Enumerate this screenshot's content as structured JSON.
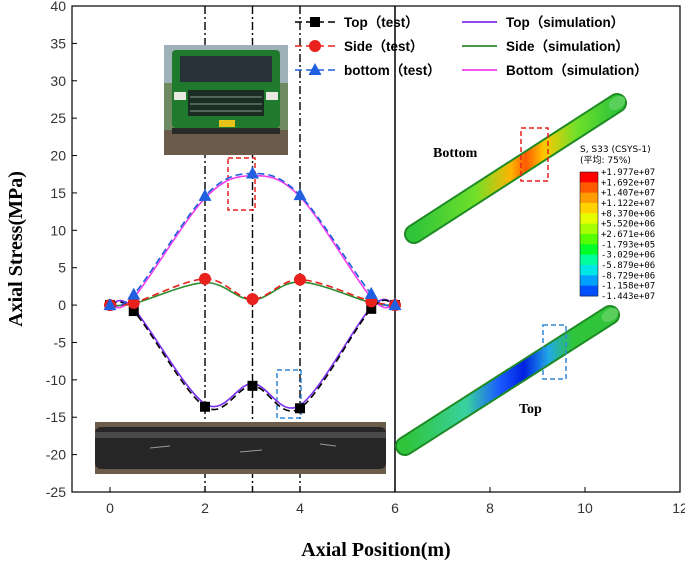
{
  "chart_data": {
    "type": "line",
    "xlabel": "Axial Position(m)",
    "ylabel": "Axial Stress(MPa)",
    "xlim": [
      -0.8,
      12
    ],
    "ylim": [
      -25,
      40
    ],
    "x_ticks": [
      0,
      2,
      4,
      6,
      8,
      10,
      12
    ],
    "y_ticks": [
      40,
      35,
      30,
      25,
      20,
      15,
      10,
      5,
      0,
      -5,
      -10,
      -15,
      -20,
      -25
    ],
    "vertical_markers": [
      2,
      3,
      4
    ],
    "panel_divider_x": 6,
    "legend_position": "top",
    "series": [
      {
        "name": "Top（test）",
        "kind": "test",
        "style": "dashed",
        "marker": "square",
        "color": "#000000",
        "x": [
          0,
          0.5,
          2,
          3,
          4,
          5.5,
          6
        ],
        "y": [
          0,
          -0.8,
          -13.6,
          -10.8,
          -13.8,
          -0.5,
          0
        ]
      },
      {
        "name": "Side（test）",
        "kind": "test",
        "style": "dashed",
        "marker": "circle",
        "color": "#e8211d",
        "x": [
          0,
          0.5,
          2,
          3,
          4,
          5.5,
          6
        ],
        "y": [
          0,
          0.3,
          3.5,
          0.8,
          3.4,
          0.5,
          0
        ]
      },
      {
        "name": "bottom（test）",
        "kind": "test",
        "style": "dashed",
        "marker": "triangle",
        "color": "#1f5fe0",
        "x": [
          0,
          0.5,
          2,
          3,
          4,
          5.5,
          6
        ],
        "y": [
          0,
          1.4,
          14.6,
          17.6,
          14.7,
          1.5,
          0
        ]
      },
      {
        "name": "Top（simulation）",
        "kind": "sim",
        "style": "solid",
        "color": "#7b2ff0",
        "x": [
          0,
          0.5,
          2,
          3,
          4,
          5.5,
          6
        ],
        "y": [
          0,
          -0.5,
          -13.2,
          -10.5,
          -13.4,
          -0.3,
          0
        ]
      },
      {
        "name": "Side（simulation）",
        "kind": "sim",
        "style": "solid",
        "color": "#2e8b2e",
        "x": [
          0,
          0.5,
          2,
          3,
          4,
          5.5,
          6
        ],
        "y": [
          0,
          0.2,
          3.0,
          0.7,
          3.1,
          0.3,
          0
        ]
      },
      {
        "name": "Bottom（simulation）",
        "kind": "sim",
        "style": "solid",
        "color": "#f03ff0",
        "x": [
          0,
          0.5,
          2,
          3,
          4,
          5.5,
          6
        ],
        "y": [
          0,
          1.0,
          14.3,
          17.3,
          14.5,
          1.0,
          0
        ]
      }
    ]
  },
  "simulation": {
    "bottom_label": "Bottom",
    "top_label": "Top",
    "colorbar": {
      "header": [
        "S, S33 (CSYS-1)",
        "(平均: 75%)"
      ],
      "labels": [
        "+1.977e+07",
        "+1.692e+07",
        "+1.407e+07",
        "+1.122e+07",
        "+8.370e+06",
        "+5.520e+06",
        "+2.671e+06",
        "-1.793e+05",
        "-3.029e+06",
        "-5.879e+06",
        "-8.729e+06",
        "-1.158e+07",
        "-1.443e+07"
      ],
      "colors": [
        "#ff0000",
        "#ff5a00",
        "#ff9c00",
        "#ffd200",
        "#e6ff00",
        "#a6ff00",
        "#55ff00",
        "#00ff28",
        "#00ff9c",
        "#00e6e6",
        "#00a0ff",
        "#0050ff",
        "#0000ff"
      ]
    }
  }
}
